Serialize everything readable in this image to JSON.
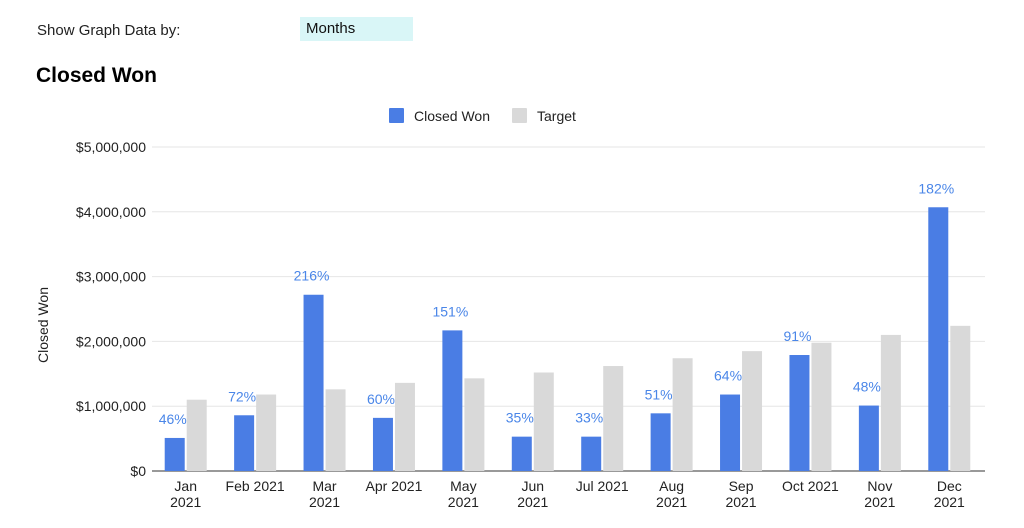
{
  "controls": {
    "filter_label": "Show Graph Data by:",
    "filter_value": "Months"
  },
  "chart_data": {
    "type": "bar",
    "title": "Closed Won",
    "ylabel": "Closed Won",
    "xlabel": "",
    "ylim": [
      0,
      5000000
    ],
    "yticks": [
      "$0",
      "$1,000,000",
      "$2,000,000",
      "$3,000,000",
      "$4,000,000",
      "$5,000,000"
    ],
    "legend_position": "top-center",
    "grid": true,
    "categories": [
      [
        "Jan",
        "2021"
      ],
      [
        "Feb 2021"
      ],
      [
        "Mar",
        "2021"
      ],
      [
        "Apr 2021"
      ],
      [
        "May",
        "2021"
      ],
      [
        "Jun",
        "2021"
      ],
      [
        "Jul 2021"
      ],
      [
        "Aug",
        "2021"
      ],
      [
        "Sep",
        "2021"
      ],
      [
        "Oct 2021"
      ],
      [
        "Nov",
        "2021"
      ],
      [
        "Dec",
        "2021"
      ]
    ],
    "series": [
      {
        "name": "Closed Won",
        "color": "#4a7de4",
        "values": [
          510000,
          860000,
          2720000,
          820000,
          2170000,
          530000,
          530000,
          890000,
          1180000,
          1790000,
          1010000,
          4070000
        ]
      },
      {
        "name": "Target",
        "color": "#d9d9d9",
        "values": [
          1100000,
          1180000,
          1260000,
          1360000,
          1430000,
          1520000,
          1620000,
          1740000,
          1850000,
          1980000,
          2100000,
          2240000
        ]
      }
    ],
    "percent_labels": [
      "46%",
      "72%",
      "216%",
      "60%",
      "151%",
      "35%",
      "33%",
      "51%",
      "64%",
      "91%",
      "48%",
      "182%"
    ]
  }
}
